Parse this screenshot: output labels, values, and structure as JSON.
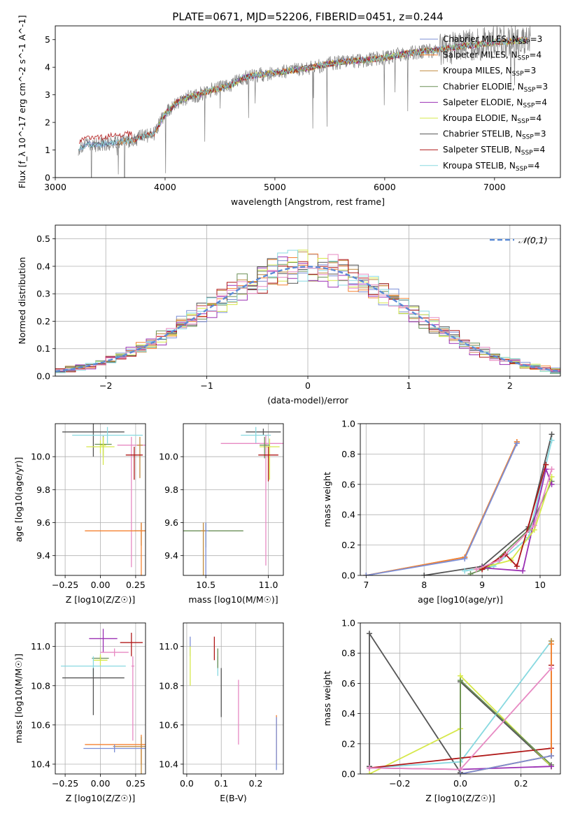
{
  "figure": {
    "title": "PLATE=0671, MJD=52206, FIBERID=0451, z=0.244"
  },
  "series_styles": [
    {
      "name": "Chabrier MILES, N_SSP=3",
      "color": "#7b8ed6"
    },
    {
      "name": "Salpeter MILES, N_SSP=4",
      "color": "#f58231"
    },
    {
      "name": "Kroupa MILES, N_SSP=3",
      "color": "#c08a3e"
    },
    {
      "name": "Chabrier ELODIE, N_SSP=3",
      "color": "#6a8f57"
    },
    {
      "name": "Salpeter ELODIE, N_SSP=4",
      "color": "#9b30b4"
    },
    {
      "name": "Kroupa ELODIE, N_SSP=4",
      "color": "#d6e84a"
    },
    {
      "name": "Chabrier STELIB, N_SSP=3",
      "color": "#555555"
    },
    {
      "name": "Salpeter STELIB, N_SSP=4",
      "color": "#b01818"
    },
    {
      "name": "Kroupa STELIB, N_SSP=4",
      "color": "#88d9e0"
    },
    {
      "name": "",
      "color": "#e78ac3"
    }
  ],
  "chart_data": [
    {
      "id": "spectrum",
      "type": "line",
      "xlabel": "wavelength [Angstrom, rest frame]",
      "ylabel": "Flux [f_λ 10^-17 erg cm^-2 s^-1 A^-1]",
      "xlim": [
        3000,
        7600
      ],
      "ylim": [
        0,
        5.5
      ],
      "xticks": [
        3000,
        4000,
        5000,
        6000,
        7000
      ],
      "yticks": [
        0,
        1,
        2,
        3,
        4,
        5
      ],
      "data_color": "#808080",
      "model_x": [
        3200,
        3300,
        3400,
        3500,
        3600,
        3700,
        3800,
        3900,
        4000,
        4100,
        4200,
        4300,
        4400,
        4500,
        4600,
        4700,
        4800,
        4900,
        5000,
        5200,
        5400,
        5600,
        5800,
        6000,
        6200,
        6400,
        6600,
        6800,
        7000,
        7200,
        7300
      ],
      "model_y": [
        1.05,
        1.2,
        1.2,
        1.25,
        1.3,
        1.35,
        1.5,
        1.6,
        2.3,
        2.7,
        2.9,
        3.0,
        3.15,
        3.25,
        3.35,
        3.6,
        3.7,
        3.75,
        3.8,
        3.9,
        4.05,
        4.2,
        4.25,
        4.35,
        4.5,
        4.6,
        4.7,
        4.8,
        4.9,
        4.95,
        5.0
      ],
      "legend_position": "upper right",
      "grid": false
    },
    {
      "id": "residuals",
      "type": "histogram",
      "xlabel": "(data-model)/error",
      "ylabel": "Normed distribution",
      "xlim": [
        -2.5,
        2.5
      ],
      "ylim": [
        0,
        0.55
      ],
      "xticks": [
        -2,
        -1,
        0,
        1,
        2
      ],
      "yticks": [
        0.0,
        0.1,
        0.2,
        0.3,
        0.4,
        0.5
      ],
      "bin_width": 0.1,
      "reference_curve": {
        "name": "𝒩(0,1)",
        "color": "#5b8bd6"
      },
      "legend_position": "upper right",
      "grid": true
    },
    {
      "id": "z_age",
      "type": "scatter",
      "xlabel": "Z [log10(Z/Z☉)]",
      "ylabel": "age [log10(age/yr)]",
      "xlim": [
        -0.32,
        0.32
      ],
      "ylim": [
        9.28,
        10.2
      ],
      "xticks": [
        -0.25,
        0.0,
        0.25
      ],
      "yticks": [
        9.4,
        9.6,
        9.8,
        10.0
      ],
      "points": [
        {
          "s": 6,
          "x": -0.05,
          "y": 10.15,
          "xerr": 0.22,
          "yerr": 0.15
        },
        {
          "s": 8,
          "x": 0.05,
          "y": 10.13,
          "xerr": 0.25,
          "yerr": 0.05
        },
        {
          "s": 5,
          "x": 0.0,
          "y": 10.06,
          "xerr": 0.1,
          "yerr": 0.04
        },
        {
          "s": 9,
          "x": 0.22,
          "y": 10.07,
          "xerr": 0.1,
          "yerr": 0.74
        },
        {
          "s": 3,
          "x": 0.02,
          "y": 10.075,
          "xerr": 0.06,
          "yerr": 0.07
        },
        {
          "s": 5,
          "x": 0.02,
          "y": 10.07,
          "xerr": 0.02,
          "yerr": 0.12
        },
        {
          "s": 2,
          "x": 0.28,
          "y": 10.07,
          "xerr": 0.02,
          "yerr": 0.2
        },
        {
          "s": 7,
          "x": 0.24,
          "y": 10.01,
          "xerr": 0.06,
          "yerr": 0.15
        },
        {
          "s": 3,
          "x": 0.29,
          "y": 9.55,
          "xerr": 0.05,
          "yerr": 0.09
        },
        {
          "s": 1,
          "x": 0.29,
          "y": 9.55,
          "xerr": 0.4,
          "yerr": 0.6
        }
      ],
      "grid": true
    },
    {
      "id": "mass_age",
      "type": "scatter",
      "xlabel": "mass [log10(M/M☉)]",
      "ylabel": "",
      "xlim": [
        10.32,
        11.12
      ],
      "ylim": [
        9.28,
        10.2
      ],
      "xticks": [
        10.5,
        11.0
      ],
      "yticks": [
        9.4,
        9.6,
        9.8,
        10.0
      ],
      "points": [
        {
          "s": 6,
          "x": 10.96,
          "y": 10.15,
          "xerr": 0.14,
          "yerr": 0.02
        },
        {
          "s": 8,
          "x": 10.9,
          "y": 10.13,
          "xerr": 0.12,
          "yerr": 0.05
        },
        {
          "s": 9,
          "x": 10.98,
          "y": 10.08,
          "xerr": 0.36,
          "yerr": 0.74
        },
        {
          "s": 5,
          "x": 11.01,
          "y": 10.06,
          "xerr": 0.08,
          "yerr": 0.2
        },
        {
          "s": 3,
          "x": 10.97,
          "y": 10.07,
          "xerr": 0.04,
          "yerr": 0.08
        },
        {
          "s": 7,
          "x": 11.0,
          "y": 10.01,
          "xerr": 0.08,
          "yerr": 0.16
        },
        {
          "s": 3,
          "x": 10.5,
          "y": 9.55,
          "xerr": 0.3,
          "yerr": 0.1
        },
        {
          "s": 0,
          "x": 10.5,
          "y": 9.55,
          "xerr": 0.02,
          "yerr": 0.6
        },
        {
          "s": 2,
          "x": 10.48,
          "y": 9.55,
          "xerr": 0.02,
          "yerr": 0.3
        }
      ],
      "grid": true
    },
    {
      "id": "age_weight",
      "type": "line",
      "xlabel": "age [log10(age/yr)]",
      "ylabel": "mass weight",
      "xlim": [
        6.9,
        10.35
      ],
      "ylim": [
        0.0,
        1.0
      ],
      "xticks": [
        7,
        8,
        9,
        10
      ],
      "yticks": [
        0.0,
        0.2,
        0.4,
        0.6,
        0.8,
        1.0
      ],
      "series": [
        {
          "s": 2,
          "x": [
            7.0,
            8.7,
            9.6
          ],
          "y": [
            0.0,
            0.12,
            0.88
          ]
        },
        {
          "s": 1,
          "x": [
            7.0,
            8.7,
            9.6
          ],
          "y": [
            0.0,
            0.12,
            0.88
          ]
        },
        {
          "s": 0,
          "x": [
            7.0,
            8.7,
            9.6
          ],
          "y": [
            0.0,
            0.11,
            0.87
          ]
        },
        {
          "s": 6,
          "x": [
            8.0,
            9.0,
            9.8,
            10.2
          ],
          "y": [
            0.0,
            0.06,
            0.32,
            0.93
          ]
        },
        {
          "s": 8,
          "x": [
            8.7,
            9.2,
            9.8,
            10.2
          ],
          "y": [
            0.03,
            0.06,
            0.25,
            0.89
          ]
        },
        {
          "s": 3,
          "x": [
            8.8,
            9.1,
            9.8,
            10.2
          ],
          "y": [
            0.01,
            0.05,
            0.3,
            0.62
          ]
        },
        {
          "s": 4,
          "x": [
            9.0,
            9.7,
            10.1,
            10.2
          ],
          "y": [
            0.05,
            0.03,
            0.7,
            0.6
          ]
        },
        {
          "s": 5,
          "x": [
            8.9,
            9.5,
            9.9,
            10.2
          ],
          "y": [
            0.04,
            0.1,
            0.3,
            0.65
          ]
        },
        {
          "s": 7,
          "x": [
            9.0,
            9.4,
            9.6,
            10.1
          ],
          "y": [
            0.04,
            0.14,
            0.06,
            0.73
          ]
        },
        {
          "s": 9,
          "x": [
            8.9,
            9.3,
            9.9,
            10.2
          ],
          "y": [
            0.04,
            0.1,
            0.33,
            0.7
          ]
        }
      ],
      "grid": true
    },
    {
      "id": "z_mass",
      "type": "scatter",
      "xlabel": "Z [log10(Z/Z☉)]",
      "ylabel": "mass [log10(M/M☉)]",
      "xlim": [
        -0.32,
        0.32
      ],
      "ylim": [
        10.35,
        11.12
      ],
      "xticks": [
        -0.25,
        0.0,
        0.25
      ],
      "yticks": [
        10.4,
        10.6,
        10.8,
        11.0
      ],
      "points": [
        {
          "s": 4,
          "x": 0.02,
          "y": 11.04,
          "xerr": 0.1,
          "yerr": 0.07
        },
        {
          "s": 7,
          "x": 0.22,
          "y": 11.02,
          "xerr": 0.08,
          "yerr": 0.07
        },
        {
          "s": 9,
          "x": 0.1,
          "y": 10.97,
          "xerr": 0.1,
          "yerr": 0.02
        },
        {
          "s": 3,
          "x": 0.0,
          "y": 10.94,
          "xerr": 0.06,
          "yerr": 0.01
        },
        {
          "s": 5,
          "x": 0.0,
          "y": 10.93,
          "xerr": 0.05,
          "yerr": 0.03
        },
        {
          "s": 8,
          "x": -0.05,
          "y": 10.9,
          "xerr": 0.23,
          "yerr": 0.05
        },
        {
          "s": 6,
          "x": -0.05,
          "y": 10.84,
          "xerr": 0.22,
          "yerr": 0.19
        },
        {
          "s": 9,
          "x": 0.23,
          "y": 10.9,
          "xerr": 0.01,
          "yerr": 0.38
        },
        {
          "s": 1,
          "x": 0.29,
          "y": 10.5,
          "xerr": 0.4,
          "yerr": 0.1
        },
        {
          "s": 2,
          "x": 0.29,
          "y": 10.49,
          "xerr": 0.2,
          "yerr": 0.3
        },
        {
          "s": 0,
          "x": 0.1,
          "y": 10.48,
          "xerr": 0.22,
          "yerr": 0.02
        }
      ],
      "grid": true
    },
    {
      "id": "ebv_mass",
      "type": "scatter",
      "xlabel": "E(B-V)",
      "ylabel": "",
      "xlim": [
        -0.01,
        0.28
      ],
      "ylim": [
        10.35,
        11.12
      ],
      "xticks": [
        0.0,
        0.1,
        0.2
      ],
      "yticks": [
        10.4,
        10.6,
        10.8,
        11.0
      ],
      "points": [
        {
          "s": 0,
          "x": 0.01,
          "y": 11.0,
          "xerr": 0,
          "yerr": 0.05
        },
        {
          "s": 5,
          "x": 0.01,
          "y": 10.95,
          "xerr": 0,
          "yerr": 0.15
        },
        {
          "s": 7,
          "x": 0.08,
          "y": 11.0,
          "xerr": 0,
          "yerr": 0.07
        },
        {
          "s": 8,
          "x": 0.09,
          "y": 10.9,
          "xerr": 0,
          "yerr": 0.05
        },
        {
          "s": 6,
          "x": 0.1,
          "y": 10.84,
          "xerr": 0,
          "yerr": 0.2
        },
        {
          "s": 3,
          "x": 0.09,
          "y": 10.94,
          "xerr": 0,
          "yerr": 0.05
        },
        {
          "s": 9,
          "x": 0.15,
          "y": 10.78,
          "xerr": 0,
          "yerr": 0.28
        },
        {
          "s": 1,
          "x": 0.26,
          "y": 10.6,
          "xerr": 0,
          "yerr": 0.2
        },
        {
          "s": 0,
          "x": 0.26,
          "y": 10.59,
          "xerr": 0,
          "yerr": 0.22
        }
      ],
      "grid": true
    },
    {
      "id": "z_weight",
      "type": "line",
      "xlabel": "Z [log10(Z/Z☉)]",
      "ylabel": "mass weight",
      "xlim": [
        -0.33,
        0.33
      ],
      "ylim": [
        0.0,
        1.0
      ],
      "xticks": [
        -0.2,
        0.0,
        0.2
      ],
      "yticks": [
        0.0,
        0.2,
        0.4,
        0.6,
        0.8,
        1.0
      ],
      "series": [
        {
          "s": 6,
          "x": [
            -0.3,
            -0.3,
            0.0,
            0.0,
            0.3,
            0.3
          ],
          "y": [
            0.05,
            0.93,
            0.01,
            0.61,
            0.05,
            0.05
          ]
        },
        {
          "s": 5,
          "x": [
            -0.3,
            0.0,
            0.0,
            0.3
          ],
          "y": [
            0.0,
            0.3,
            0.65,
            0.05
          ]
        },
        {
          "s": 8,
          "x": [
            -0.3,
            0.0,
            0.3,
            0.3
          ],
          "y": [
            0.04,
            0.08,
            0.88,
            0.88
          ]
        },
        {
          "s": 7,
          "x": [
            -0.3,
            0.3,
            0.3
          ],
          "y": [
            0.04,
            0.17,
            0.72
          ]
        },
        {
          "s": 3,
          "x": [
            0.0,
            0.0,
            0.3
          ],
          "y": [
            0.0,
            0.62,
            0.06
          ]
        },
        {
          "s": 2,
          "x": [
            0.0,
            0.3,
            0.3
          ],
          "y": [
            0.0,
            0.12,
            0.88
          ]
        },
        {
          "s": 1,
          "x": [
            0.0,
            0.3,
            0.3
          ],
          "y": [
            0.0,
            0.12,
            0.86
          ]
        },
        {
          "s": 4,
          "x": [
            -0.3,
            0.0,
            0.3
          ],
          "y": [
            0.04,
            0.03,
            0.05
          ]
        },
        {
          "s": 9,
          "x": [
            -0.3,
            0.0,
            0.3
          ],
          "y": [
            0.04,
            0.03,
            0.7
          ]
        },
        {
          "s": 0,
          "x": [
            0.0,
            0.3
          ],
          "y": [
            0.0,
            0.12
          ]
        }
      ],
      "grid": true
    }
  ]
}
